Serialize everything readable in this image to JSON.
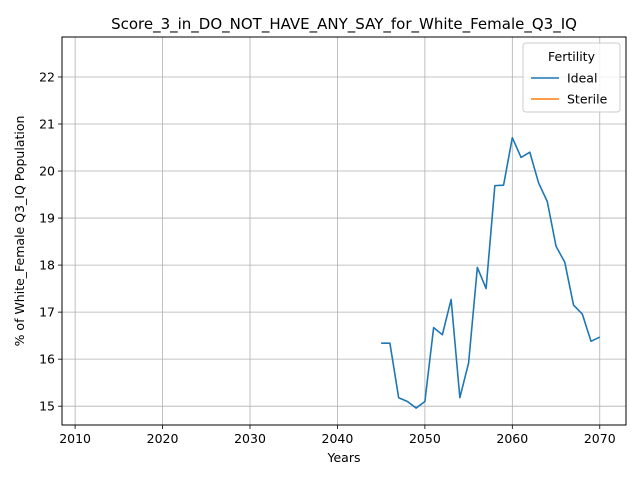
{
  "chart_data": {
    "type": "line",
    "title": "Score_3_in_DO_NOT_HAVE_ANY_SAY_for_White_Female_Q3_IQ",
    "xlabel": "Years",
    "ylabel": "% of White_Female Q3_IQ Population",
    "xlim": [
      2008.5,
      2073.0
    ],
    "ylim": [
      14.6,
      22.85
    ],
    "xticks": [
      2010,
      2020,
      2030,
      2040,
      2050,
      2060,
      2070
    ],
    "yticks": [
      15,
      16,
      17,
      18,
      19,
      20,
      21,
      22
    ],
    "grid": true,
    "legend": {
      "title": "Fertility",
      "placement": "top-right"
    },
    "series": [
      {
        "name": "Ideal",
        "color": "#1f77b4",
        "x": [
          2045,
          2046,
          2047,
          2048,
          2049,
          2050,
          2051,
          2052,
          2053,
          2054,
          2055,
          2056,
          2057,
          2058,
          2059,
          2060,
          2061,
          2062,
          2063,
          2064,
          2065,
          2066,
          2067,
          2068,
          2069,
          2070
        ],
        "y": [
          16.34,
          16.34,
          15.18,
          15.1,
          14.96,
          15.1,
          16.67,
          16.52,
          17.27,
          15.18,
          15.92,
          17.95,
          17.5,
          19.69,
          19.7,
          20.71,
          20.29,
          20.4,
          19.75,
          19.35,
          18.4,
          18.06,
          17.15,
          16.96,
          16.38,
          16.47
        ]
      },
      {
        "name": "Sterile",
        "color": "#ff7f0e",
        "x": [],
        "y": []
      }
    ]
  }
}
